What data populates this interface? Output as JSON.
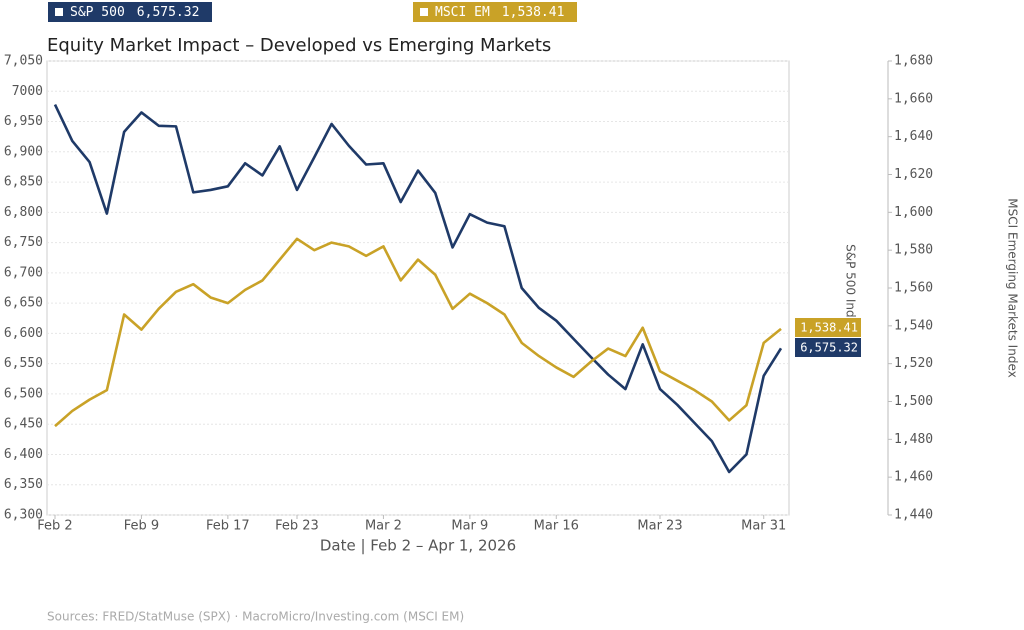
{
  "chart_data": {
    "type": "line",
    "title": "Equity Market Impact – Developed vs Emerging Markets",
    "x_label": "Date  |  Feb 2 – Apr 1, 2026",
    "y_label": "S&P 500 Index",
    "y2_label": "MSCI Emerging Markets Index",
    "source": "Sources: FRED/StatMuse (SPX) · MacroMicro/Investing.com (MSCI EM)",
    "categories": [
      "Feb 2",
      null,
      null,
      null,
      null,
      "Feb 9",
      null,
      null,
      null,
      null,
      "Feb 17",
      null,
      null,
      null,
      "Feb 23",
      null,
      null,
      null,
      null,
      "Mar 2",
      null,
      null,
      null,
      null,
      "Mar 9",
      null,
      null,
      null,
      null,
      "Mar 16",
      null,
      null,
      null,
      null,
      null,
      "Mar 23",
      null,
      null,
      null,
      null,
      null,
      "Mar 31",
      null
    ],
    "series": [
      {
        "name": "S&P 500",
        "color": "#1f3a68",
        "axis": "y",
        "values": [
          6978,
          6918,
          6883,
          6798,
          6933,
          6965,
          6943,
          6942,
          6833,
          6837,
          6843,
          6881,
          6861,
          6909,
          6837,
          6891,
          6946,
          6910,
          6879,
          6881,
          6817,
          6869,
          6832,
          6742,
          6797,
          6783,
          6777,
          6675,
          6642,
          6621,
          6591,
          6561,
          6532,
          6508,
          6582,
          6508,
          6482,
          6452,
          6422,
          6371,
          6400,
          6530,
          6575.32
        ],
        "value_labels": [
          null,
          null,
          null,
          null,
          null,
          null,
          null,
          null,
          null,
          null,
          null,
          null,
          null,
          null,
          null,
          null,
          null,
          null,
          null,
          null,
          null,
          null,
          null,
          null,
          null,
          null,
          null,
          null,
          null,
          null,
          null,
          null,
          null,
          null,
          null,
          null,
          null,
          null,
          null,
          null,
          null,
          null,
          "6,575.32"
        ]
      },
      {
        "name": "MSCI EM",
        "color": "#c9a227",
        "axis": "y2",
        "values": [
          1487,
          1495,
          1501,
          1506,
          1546,
          1538,
          1549,
          1558,
          1562,
          1555,
          1552,
          1559,
          1564,
          1575,
          1586,
          1580,
          1584,
          1582,
          1577,
          1582,
          1564,
          1575,
          1567,
          1549,
          1557,
          1552,
          1546,
          1531,
          1524,
          1518,
          1513,
          1521,
          1528,
          1524,
          1539,
          1516,
          1511,
          1506,
          1500,
          1490,
          1498,
          1531,
          1538.41
        ],
        "value_labels": [
          null,
          null,
          null,
          null,
          null,
          null,
          null,
          null,
          null,
          null,
          null,
          null,
          null,
          null,
          null,
          null,
          null,
          null,
          null,
          null,
          null,
          null,
          null,
          null,
          null,
          null,
          null,
          null,
          null,
          null,
          null,
          null,
          null,
          null,
          null,
          null,
          null,
          null,
          null,
          null,
          null,
          null,
          "1,538.41"
        ]
      }
    ],
    "ylim": [
      6300,
      7050
    ],
    "yticks": [
      {
        "value": 6300,
        "label": "6,300"
      },
      {
        "value": 6350,
        "label": "6,350"
      },
      {
        "value": 6400,
        "label": "6,400"
      },
      {
        "value": 6450,
        "label": "6,450"
      },
      {
        "value": 6500,
        "label": "6,500"
      },
      {
        "value": 6550,
        "label": "6,550"
      },
      {
        "value": 6600,
        "label": "6,600"
      },
      {
        "value": 6650,
        "label": "6,650"
      },
      {
        "value": 6700,
        "label": "6,700"
      },
      {
        "value": 6750,
        "label": "6,750"
      },
      {
        "value": 6800,
        "label": "6,800"
      },
      {
        "value": 6850,
        "label": "6,850"
      },
      {
        "value": 6900,
        "label": "6,900"
      },
      {
        "value": 6950,
        "label": "6,950"
      },
      {
        "value": 7000,
        "label": "7000"
      },
      {
        "value": 7050,
        "label": "7,050"
      }
    ],
    "y2lim": [
      1440,
      1680
    ],
    "y2ticks": [
      {
        "value": 1440,
        "label": "1,440"
      },
      {
        "value": 1460,
        "label": "1,460"
      },
      {
        "value": 1480,
        "label": "1,480"
      },
      {
        "value": 1500,
        "label": "1,500"
      },
      {
        "value": 1520,
        "label": "1,520"
      },
      {
        "value": 1540,
        "label": "1,540"
      },
      {
        "value": 1560,
        "label": "1,560"
      },
      {
        "value": 1580,
        "label": "1,580"
      },
      {
        "value": 1600,
        "label": "1,600"
      },
      {
        "value": 1620,
        "label": "1,620"
      },
      {
        "value": 1640,
        "label": "1,640"
      },
      {
        "value": 1660,
        "label": "1,660"
      },
      {
        "value": 1680,
        "label": "1,680"
      }
    ],
    "grid": true
  }
}
